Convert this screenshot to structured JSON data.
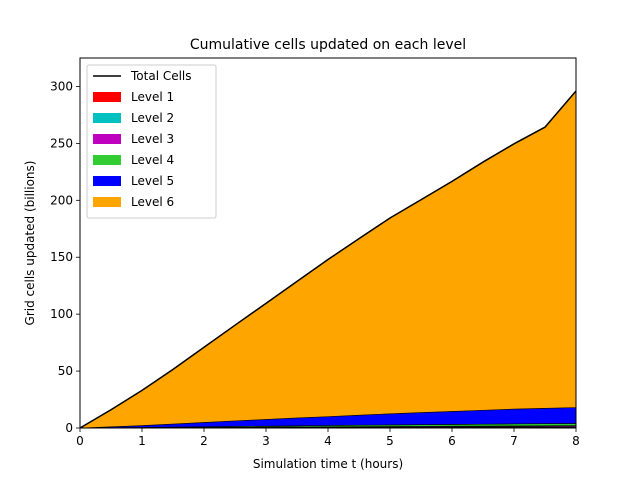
{
  "chart_data": {
    "type": "area",
    "stacked": true,
    "title": "Cumulative cells updated on each level",
    "xlabel": "Simulation time t (hours)",
    "ylabel": "Grid cells updated (billions)",
    "xlim": [
      0,
      8
    ],
    "ylim": [
      0,
      325
    ],
    "xticks": [
      0,
      1,
      2,
      3,
      4,
      5,
      6,
      7,
      8
    ],
    "yticks": [
      0,
      50,
      100,
      150,
      200,
      250,
      300
    ],
    "grid": false,
    "legend": "top-left",
    "x": [
      0,
      0.5,
      1,
      1.5,
      2,
      2.5,
      3,
      3.5,
      4,
      4.5,
      5,
      5.5,
      6,
      6.5,
      7,
      7.5,
      8
    ],
    "series": [
      {
        "name": "Level 1",
        "color": "#ff0000",
        "values": [
          0,
          0.05,
          0.1,
          0.15,
          0.2,
          0.25,
          0.3,
          0.35,
          0.4,
          0.45,
          0.5,
          0.55,
          0.6,
          0.65,
          0.7,
          0.75,
          0.8
        ]
      },
      {
        "name": "Level 2",
        "color": "#00c0c0",
        "values": [
          0,
          0.03,
          0.06,
          0.09,
          0.12,
          0.15,
          0.18,
          0.21,
          0.24,
          0.27,
          0.3,
          0.33,
          0.36,
          0.39,
          0.42,
          0.45,
          0.5
        ]
      },
      {
        "name": "Level 3",
        "color": "#bf00bf",
        "values": [
          0,
          0.05,
          0.1,
          0.15,
          0.2,
          0.25,
          0.3,
          0.35,
          0.4,
          0.45,
          0.5,
          0.55,
          0.6,
          0.65,
          0.7,
          0.75,
          0.8
        ]
      },
      {
        "name": "Level 4",
        "color": "#32cd32",
        "values": [
          0,
          0.1,
          0.25,
          0.4,
          0.55,
          0.7,
          0.85,
          1.0,
          1.15,
          1.3,
          1.4,
          1.5,
          1.6,
          1.7,
          1.8,
          1.85,
          1.9
        ]
      },
      {
        "name": "Level 5",
        "color": "#0000ff",
        "values": [
          0,
          0.8,
          1.6,
          2.7,
          3.8,
          4.9,
          5.9,
          6.9,
          7.8,
          8.8,
          9.8,
          10.6,
          11.4,
          12.2,
          13.0,
          13.5,
          14.0
        ]
      },
      {
        "name": "Level 6",
        "color": "#ffa500",
        "values": [
          0,
          15.0,
          31.0,
          48.0,
          66.0,
          84.0,
          102.0,
          120.0,
          138.0,
          155.0,
          172.0,
          187.0,
          202.0,
          218.0,
          233.0,
          247.0,
          278.0
        ]
      }
    ],
    "total": {
      "name": "Total Cells",
      "color": "#000000",
      "values": [
        0,
        16,
        33,
        51.5,
        70.9,
        90.3,
        109.5,
        128.8,
        148,
        166.3,
        184.5,
        200.5,
        216.6,
        233.6,
        249.6,
        264.3,
        296
      ]
    }
  }
}
